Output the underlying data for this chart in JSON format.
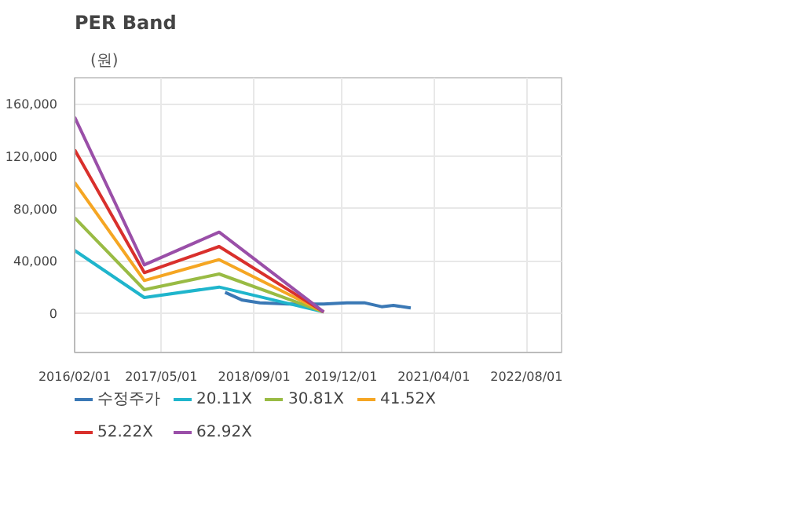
{
  "chart_data": {
    "type": "line",
    "title": "PER Band",
    "ylabel": "(원)",
    "xlim": [
      "2016-02-01",
      "2023-02-01"
    ],
    "ylim": [
      -30000,
      180000
    ],
    "xticks": [
      {
        "value": "2016-02-01",
        "label": "2016/02/01"
      },
      {
        "value": "2017-05-01",
        "label": "2017/05/01"
      },
      {
        "value": "2018-09-01",
        "label": "2018/09/01"
      },
      {
        "value": "2019-12-01",
        "label": "2019/12/01"
      },
      {
        "value": "2021-04-01",
        "label": "2021/04/01"
      },
      {
        "value": "2022-08-01",
        "label": "2022/08/01"
      }
    ],
    "yticks": [
      0,
      {
        "value": 40000,
        "label": "40,000"
      },
      {
        "value": 80000,
        "label": "80,000"
      },
      {
        "value": 120000,
        "label": "120,000"
      },
      {
        "value": 160000,
        "label": "160,000"
      }
    ],
    "grid": true,
    "legend": "bottom",
    "line_style": "solid",
    "marker": "none",
    "series": [
      {
        "name": "수정주가",
        "color": "#3a78b5",
        "x": [
          "2018-04-01",
          "2018-07-01",
          "2018-10-01",
          "2019-03-01",
          "2019-09-01",
          "2020-01-01",
          "2020-04-01",
          "2020-07-01",
          "2020-09-01",
          "2020-12-01"
        ],
        "values": [
          16000,
          10000,
          8000,
          7000,
          7000,
          8000,
          8000,
          5000,
          6000,
          4000
        ]
      },
      {
        "name": "20.11X",
        "color": "#1fb5cc",
        "x": [
          "2016-02-01",
          "2017-02-01",
          "2018-03-01",
          "2019-09-01"
        ],
        "values": [
          48000,
          12000,
          20000,
          1000
        ]
      },
      {
        "name": "30.81X",
        "color": "#99bb44",
        "x": [
          "2016-02-01",
          "2017-02-01",
          "2018-03-01",
          "2019-09-01"
        ],
        "values": [
          73000,
          18000,
          30000,
          1000
        ]
      },
      {
        "name": "41.52X",
        "color": "#f5a623",
        "x": [
          "2016-02-01",
          "2017-02-01",
          "2018-03-01",
          "2019-09-01"
        ],
        "values": [
          100000,
          25000,
          41000,
          1000
        ]
      },
      {
        "name": "52.22X",
        "color": "#d9302c",
        "x": [
          "2016-02-01",
          "2017-02-01",
          "2018-03-01",
          "2019-09-01"
        ],
        "values": [
          125000,
          31000,
          51000,
          1000
        ]
      },
      {
        "name": "62.92X",
        "color": "#9a4fa8",
        "x": [
          "2016-02-01",
          "2017-02-01",
          "2018-03-01",
          "2019-09-01"
        ],
        "values": [
          150000,
          37000,
          62000,
          1000
        ]
      }
    ]
  }
}
